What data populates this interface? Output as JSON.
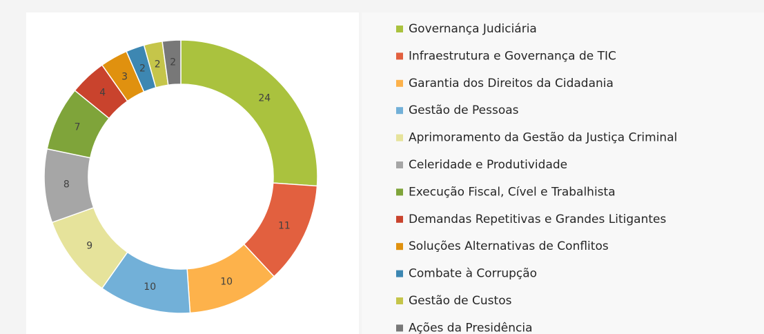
{
  "chart_data": {
    "type": "donut",
    "categories": [
      "Governança Judiciária",
      "Infraestrutura e Governança de TIC",
      "Garantia dos Direitos da Cidadania",
      "Gestão de Pessoas",
      "Aprimoramento da Gestão da Justiça Criminal",
      "Celeridade e Produtividade",
      "Execução Fiscal, Cível e Trabalhista",
      "Demandas Repetitivas e Grandes Litigantes",
      "Soluções Alternativas de Conflitos",
      "Combate à Corrupção",
      "Gestão de Custos",
      "Ações da Presidência"
    ],
    "values": [
      24,
      11,
      10,
      10,
      9,
      8,
      7,
      4,
      3,
      2,
      2,
      2
    ],
    "colors": [
      "#aac23e",
      "#e2603f",
      "#fdb24b",
      "#72b0d8",
      "#e6e39b",
      "#a6a6a6",
      "#7fa43a",
      "#c9432d",
      "#e0910f",
      "#3d87b2",
      "#c5c54a",
      "#787878"
    ],
    "legend": "right"
  }
}
